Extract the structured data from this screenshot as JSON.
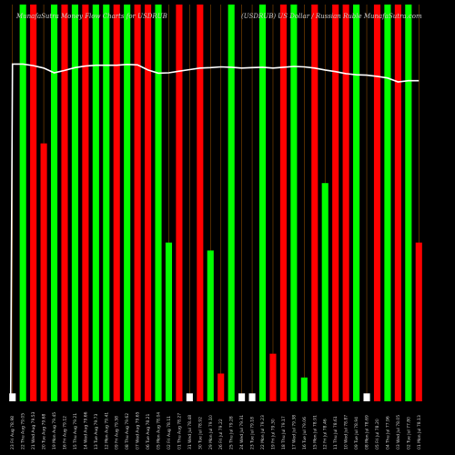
{
  "chart_data": {
    "type": "bar",
    "title": "MunafaSutra Money Flow Charts for USDRUB",
    "subtitle": "(USDRUB) US Dollar / Russian Ruble MunafaSutra.com",
    "colors": {
      "background": "#000000",
      "up": "#00ff00",
      "down": "#ff0000",
      "neutral": "#ffffff",
      "gridline": "#8a4a00",
      "price_line": "#ffffff"
    },
    "categories": [
      "23 Fri Aug 78.98",
      "22 Thu Aug 79.05",
      "21 Wed Aug 79.53",
      "20 Tue Aug 79.68",
      "19 Mon Aug 79.45",
      "16 Fri Aug 79.12",
      "15 Thu Aug 79.21",
      "14 Wed Aug 79.66",
      "13 Tue Aug 79.73",
      "12 Mon Aug 79.41",
      "09 Fri Aug 79.58",
      "08 Thu Aug 79.62",
      "07 Wed Aug 79.65",
      "06 Tue Aug 78.21",
      "05 Mon Aug 78.04",
      "02 Fri Aug 78.11",
      "01 Thu Aug 78.27",
      "31 Wed Jul 78.48",
      "30 Tue Jul 78.92",
      "29 Mon Jul 79.10",
      "26 Fri Jul 79.22",
      "25 Thu Jul 79.28",
      "24 Wed Jul 79.31",
      "23 Tue Jul 79.18",
      "22 Mon Jul 79.23",
      "19 Fri Jul 79.30",
      "18 Thu Jul 79.17",
      "17 Wed Jul 79.38",
      "16 Tue Jul 79.06",
      "15 Mon Jul 78.91",
      "12 Fri Jul 78.46",
      "11 Thu Jul 78.61",
      "10 Wed Jul 78.87",
      "09 Tue Jul 78.94",
      "08 Mon Jul 78.69",
      "05 Fri Jul 78.20",
      "04 Thu Jul 77.96",
      "03 Wed Jul 78.05",
      "02 Tue Jul 77.80",
      "01 Mon Jul 78.13"
    ],
    "values": [
      2,
      100,
      100,
      65,
      100,
      100,
      100,
      100,
      100,
      100,
      100,
      100,
      100,
      100,
      100,
      40,
      100,
      2,
      100,
      38,
      7,
      100,
      2,
      2,
      100,
      12,
      100,
      100,
      6,
      100,
      55,
      100,
      100,
      100,
      2,
      100,
      100,
      100,
      100,
      40
    ],
    "directions": [
      "neutral",
      "up",
      "down",
      "down",
      "up",
      "down",
      "up",
      "down",
      "up",
      "up",
      "down",
      "up",
      "down",
      "down",
      "up",
      "up",
      "down",
      "neutral",
      "down",
      "up",
      "down",
      "up",
      "neutral",
      "neutral",
      "up",
      "down",
      "down",
      "up",
      "up",
      "down",
      "up",
      "down",
      "down",
      "up",
      "neutral",
      "down",
      "up",
      "down",
      "up",
      "down"
    ],
    "price_line": [
      85.0,
      85.0,
      84.6,
      84.0,
      82.8,
      83.4,
      84.1,
      84.5,
      84.7,
      84.7,
      84.7,
      84.9,
      84.8,
      83.5,
      82.7,
      82.8,
      83.2,
      83.6,
      84.0,
      84.1,
      84.3,
      84.2,
      84.0,
      84.1,
      84.2,
      84.0,
      84.2,
      84.4,
      84.3,
      84.0,
      83.5,
      83.1,
      82.6,
      82.3,
      82.2,
      81.9,
      81.5,
      80.5,
      80.8,
      80.8
    ],
    "ylim": [
      0,
      100
    ],
    "grid": true,
    "legend": "none"
  }
}
